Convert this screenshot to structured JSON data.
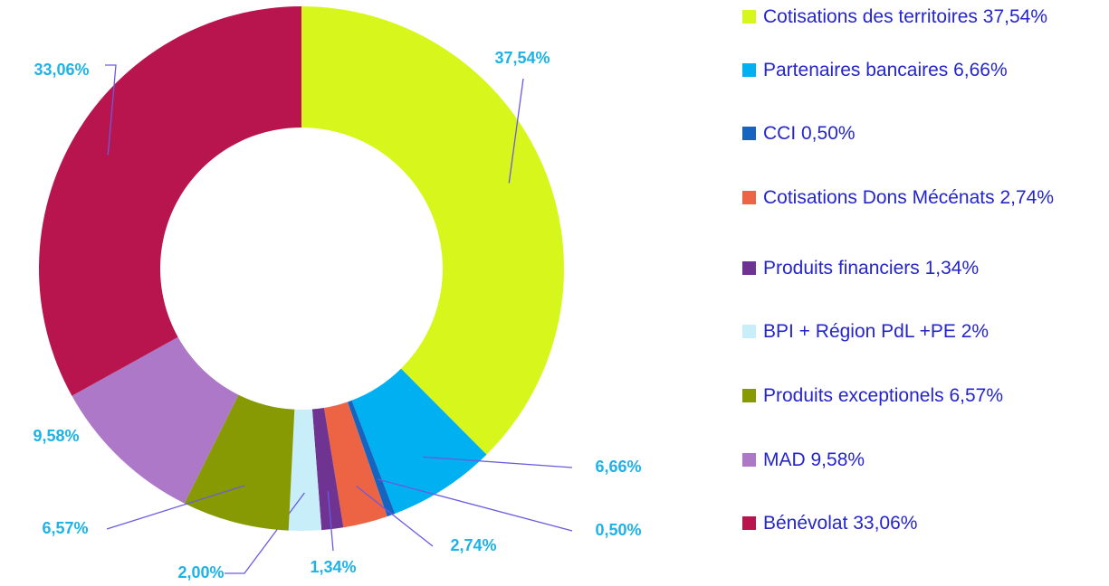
{
  "chart_data": {
    "type": "donut",
    "categories": [
      "Cotisations des territoires 37,54%",
      "Partenaires bancaires 6,66%",
      "CCI 0,50%",
      "Cotisations Dons Mécénats 2,74%",
      "Produits financiers 1,34%",
      "BPI + Région PdL +PE 2%",
      "Produits exceptionels 6,57%",
      "MAD 9,58%",
      "Bénévolat 33,06%"
    ],
    "values": [
      37.54,
      6.66,
      0.5,
      2.74,
      1.34,
      2.0,
      6.57,
      9.58,
      33.06
    ],
    "value_labels": [
      "37,54%",
      "6,66%",
      "0,50%",
      "2,74%",
      "1,34%",
      "2,00%",
      "6,57%",
      "9,58%",
      "33,06%"
    ],
    "colors": [
      "#d7f71c",
      "#00b0f0",
      "#1565c0",
      "#ec6444",
      "#6f3391",
      "#c8eefa",
      "#879a04",
      "#ad78c8",
      "#b8154f"
    ],
    "legend": "right"
  }
}
